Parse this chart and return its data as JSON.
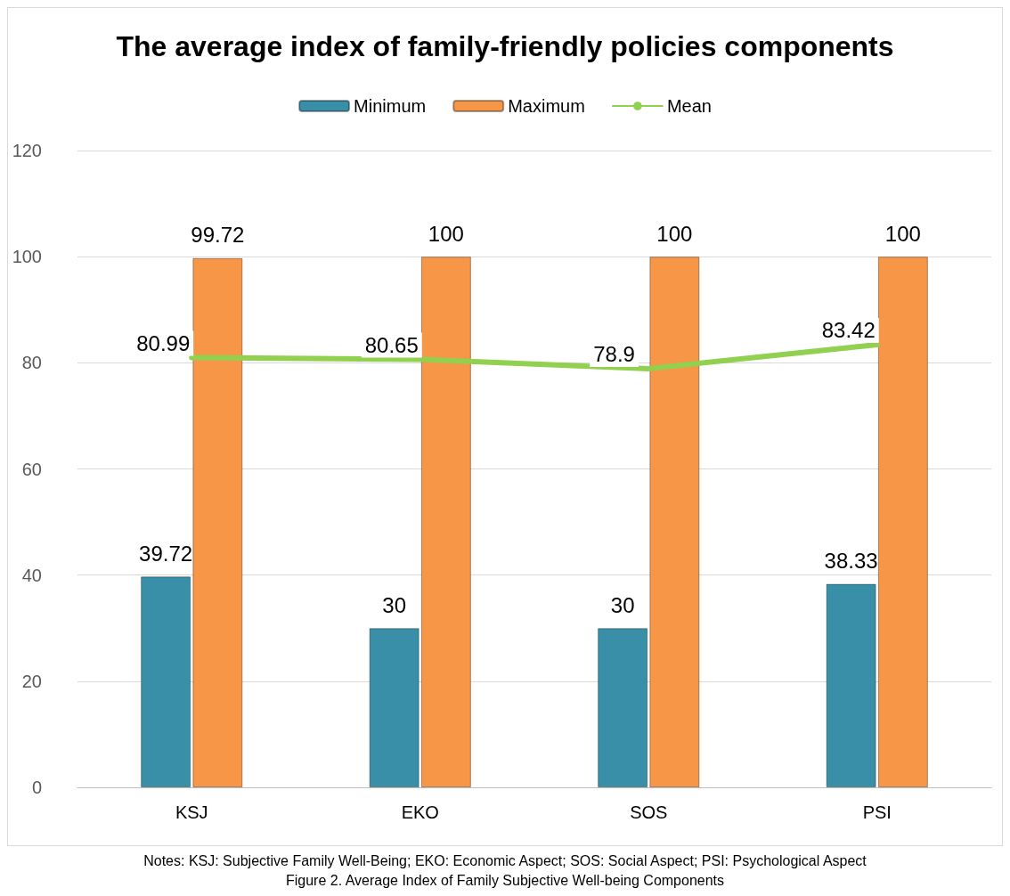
{
  "chart_data": {
    "type": "bar",
    "title": "The average index of family-friendly policies components",
    "categories": [
      "KSJ",
      "EKO",
      "SOS",
      "PSI"
    ],
    "series": [
      {
        "name": "Minimum",
        "color": "#3a8fa8",
        "values": [
          39.72,
          30,
          30,
          38.33
        ]
      },
      {
        "name": "Maximum",
        "color": "#f79646",
        "values": [
          99.72,
          100,
          100,
          100
        ]
      },
      {
        "name": "Mean",
        "type": "line",
        "color": "#92d050",
        "values": [
          80.99,
          80.65,
          78.9,
          83.42
        ]
      }
    ],
    "ylim": [
      0,
      120
    ],
    "yticks": [
      0,
      20,
      40,
      60,
      80,
      100,
      120
    ],
    "grid": "y",
    "legend": "top",
    "marker": "none",
    "data_labels": true,
    "annotations": [
      "Notes: KSJ: Subjective Family Well-Being; EKO: Economic Aspect; SOS: Social Aspect; PSI: Psychological Aspect",
      "Figure 2. Average Index of Family Subjective Well-being Components"
    ]
  }
}
